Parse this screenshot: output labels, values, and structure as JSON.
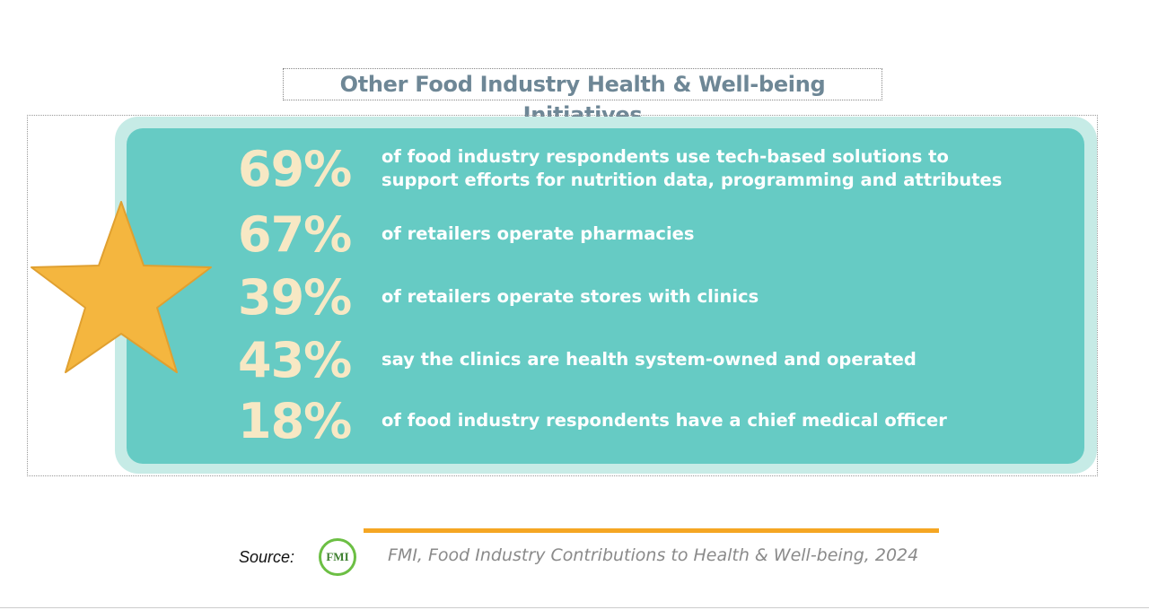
{
  "title": "Other Food Industry Health & Well-being Initiatives",
  "stats": [
    {
      "value": "69%",
      "text": "of food industry respondents use tech-based solutions to support efforts for nutrition data, programming and attributes"
    },
    {
      "value": "67%",
      "text": "of retailers operate pharmacies"
    },
    {
      "value": "39%",
      "text": "of retailers operate stores with clinics"
    },
    {
      "value": "43%",
      "text": "say the clinics are health system-owned and operated"
    },
    {
      "value": "18%",
      "text": "of food industry respondents have a chief medical officer"
    }
  ],
  "source": {
    "label": "Source:",
    "logo": "FMI",
    "citation": "FMI, Food Industry Contributions to Health & Well-being, 2024"
  }
}
